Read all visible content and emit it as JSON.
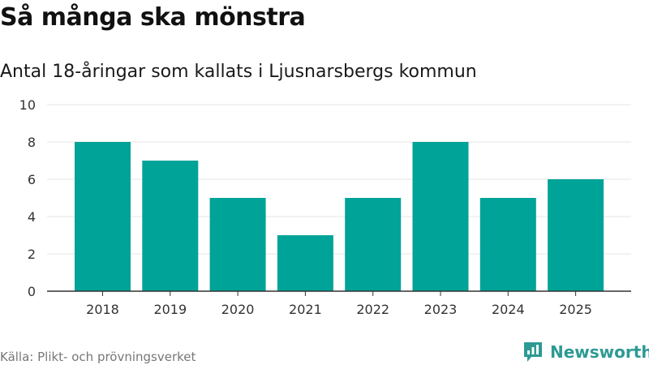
{
  "title": "Så många ska mönstra",
  "subtitle": "Antal 18-åringar som kallats i Ljusnarsbergs kommun",
  "source": "Källa: Plikt- och prövningsverket",
  "brand": {
    "name": "Newsworthy",
    "icon": "bar-chart-bubble-icon"
  },
  "colors": {
    "bar": "#00a398",
    "grid": "#e6e6e6",
    "axis": "#333333",
    "brand": "#2d9a93"
  },
  "chart_data": {
    "type": "bar",
    "title": "Så många ska mönstra",
    "subtitle": "Antal 18-åringar som kallats i Ljusnarsbergs kommun",
    "categories": [
      "2018",
      "2019",
      "2020",
      "2021",
      "2022",
      "2023",
      "2024",
      "2025"
    ],
    "values": [
      8,
      7,
      5,
      3,
      5,
      8,
      5,
      6
    ],
    "yticks": [
      "0",
      "2",
      "4",
      "6",
      "8",
      "10"
    ],
    "ylim": [
      0,
      10
    ],
    "xlabel": "",
    "ylabel": "",
    "grid": true,
    "legend": "none"
  }
}
